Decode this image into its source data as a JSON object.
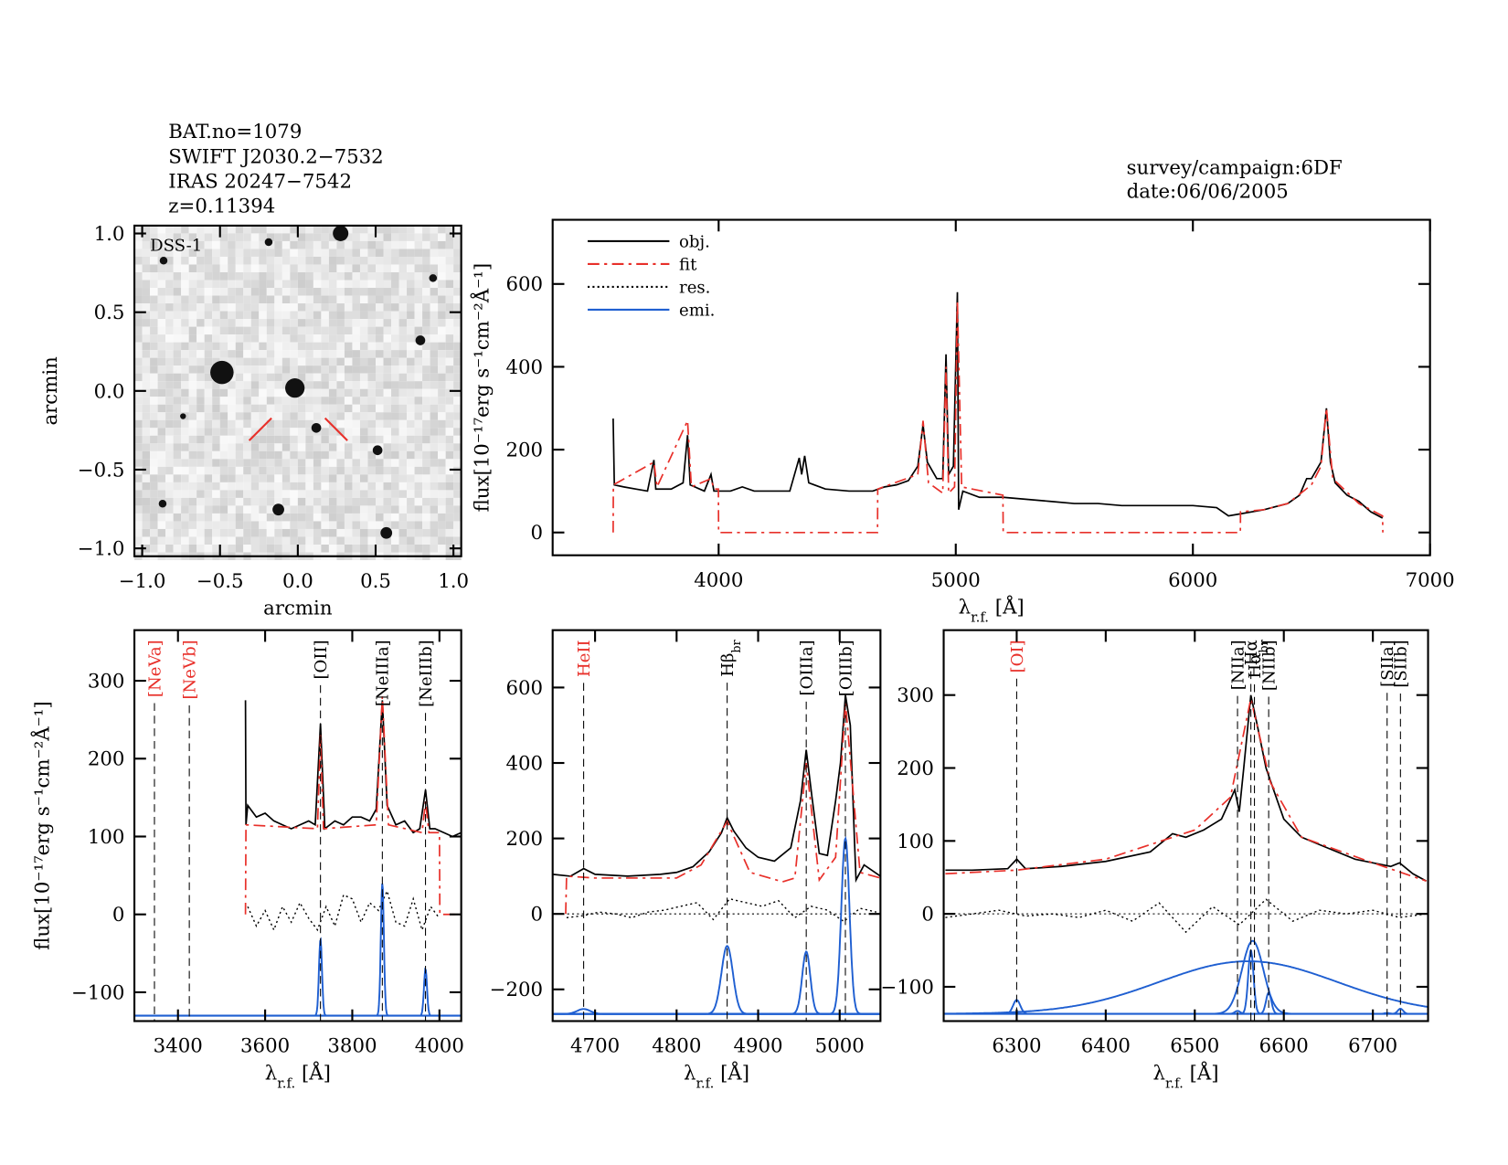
{
  "chart_data": [
    {
      "type": "image",
      "label": "DSS-1",
      "annotations": [
        "BAT.no=1079",
        "SWIFT J2030.2−7532",
        "IRAS 20247−7542",
        "z=0.11394"
      ],
      "xlim": [
        -1.05,
        1.05
      ],
      "ylim": [
        -1.05,
        1.05
      ],
      "xticks": [
        {
          "value": -1,
          "label": "−1.0"
        },
        {
          "value": -0.5,
          "label": "−0.5"
        },
        {
          "value": 0,
          "label": "0.0"
        },
        0.5,
        {
          "value": 1,
          "label": "1.0"
        }
      ],
      "yticks": [
        {
          "value": -1,
          "label": "−1.0"
        },
        {
          "value": -0.5,
          "label": "−0.5"
        },
        {
          "value": 0,
          "label": "0.0"
        },
        0.5,
        {
          "value": 1,
          "label": "1.0"
        }
      ],
      "xlabel": "arcmin",
      "ylabel": "arcmin"
    },
    {
      "type": "line",
      "annotations": [
        "survey/campaign:6DF",
        "date:06/06/2005"
      ],
      "xlim": [
        3300,
        7000
      ],
      "ylim": [
        -55,
        755
      ],
      "xticks": [
        4000,
        5000,
        6000,
        7000
      ],
      "yticks": [
        0,
        200,
        400,
        600
      ],
      "xlabel": {
        "symbol": "λ",
        "sub": "r.f.",
        "unit": " [Å]"
      },
      "ylabel": "flux[10⁻¹⁷erg s⁻¹cm⁻²Å⁻¹]",
      "legend": [
        {
          "name": "obj.",
          "color": "#000000",
          "dash": "solid"
        },
        {
          "name": "fit",
          "color": "#e8302a",
          "dash": "dashdot"
        },
        {
          "name": "res.",
          "color": "#000000",
          "dash": "dotted"
        },
        {
          "name": "emi.",
          "color": "#1f5fd1",
          "dash": "solid"
        }
      ],
      "series": [
        {
          "legend": 0,
          "x": [
            3555,
            3560,
            3600,
            3650,
            3700,
            3727,
            3735,
            3800,
            3850,
            3869,
            3880,
            3940,
            3968,
            3980,
            4050,
            4100,
            4150,
            4200,
            4300,
            4340,
            4350,
            4363,
            4380,
            4450,
            4550,
            4650,
            4700,
            4750,
            4800,
            4840,
            4862,
            4880,
            4920,
            4945,
            4959,
            4970,
            4990,
            5007,
            5012,
            5030,
            5100,
            5200,
            5300,
            5400,
            5500,
            5600,
            5700,
            5800,
            5900,
            6000,
            6100,
            6150,
            6200,
            6300,
            6400,
            6450,
            6480,
            6500,
            6540,
            6563,
            6580,
            6600,
            6650,
            6700,
            6750,
            6800
          ],
          "values": [
            275,
            115,
            110,
            105,
            100,
            175,
            105,
            105,
            120,
            235,
            115,
            100,
            140,
            100,
            100,
            110,
            100,
            100,
            100,
            180,
            140,
            185,
            120,
            105,
            100,
            100,
            110,
            115,
            125,
            160,
            260,
            170,
            130,
            130,
            430,
            140,
            160,
            580,
            55,
            100,
            85,
            85,
            80,
            75,
            70,
            70,
            65,
            65,
            65,
            65,
            60,
            40,
            45,
            55,
            70,
            90,
            130,
            130,
            170,
            300,
            170,
            120,
            90,
            75,
            50,
            35
          ]
        },
        {
          "legend": 1,
          "x": [
            3555,
            3556,
            3727,
            3740,
            3869,
            3885,
            3968,
            3980,
            3999,
            4000,
            4670,
            4671,
            4840,
            4862,
            4885,
            4945,
            4959,
            4970,
            4995,
            5007,
            5025,
            5199,
            5200,
            6200,
            6201,
            6300,
            6400,
            6500,
            6540,
            6563,
            6590,
            6700,
            6800,
            6801
          ],
          "values": [
            0,
            115,
            170,
            110,
            270,
            110,
            130,
            105,
            105,
            0,
            0,
            105,
            140,
            270,
            120,
            95,
            400,
            95,
            110,
            560,
            110,
            90,
            0,
            0,
            50,
            55,
            70,
            115,
            160,
            300,
            130,
            70,
            40,
            0
          ]
        }
      ]
    },
    {
      "type": "line",
      "xlim": [
        3300,
        4050
      ],
      "ylim": [
        -137,
        365
      ],
      "xticks": [
        3400,
        3600,
        3800,
        4000
      ],
      "yticks": [
        {
          "value": -100,
          "label": "−100"
        },
        0,
        100,
        200,
        300
      ],
      "xlabel": {
        "symbol": "λ",
        "sub": "r.f.",
        "unit": " [Å]"
      },
      "ylabel": "flux[10⁻¹⁷erg s⁻¹cm⁻²Å⁻¹]",
      "zero_line": false,
      "series": [
        {
          "legend": 0,
          "x": [
            3555,
            3556,
            3560,
            3580,
            3600,
            3620,
            3640,
            3660,
            3680,
            3700,
            3715,
            3727,
            3737,
            3760,
            3780,
            3800,
            3820,
            3840,
            3855,
            3869,
            3880,
            3900,
            3920,
            3940,
            3955,
            3968,
            3978,
            3990,
            4010,
            4030,
            4050
          ],
          "values": [
            275,
            115,
            140,
            125,
            130,
            120,
            115,
            110,
            115,
            120,
            115,
            245,
            110,
            120,
            115,
            125,
            125,
            120,
            135,
            275,
            140,
            115,
            120,
            105,
            110,
            160,
            110,
            110,
            105,
            100,
            105
          ]
        },
        {
          "legend": 1,
          "x": [
            3555,
            3556,
            3720,
            3727,
            3734,
            3855,
            3869,
            3883,
            3960,
            3968,
            3976,
            4000,
            4001,
            4050
          ],
          "values": [
            0,
            115,
            110,
            230,
            110,
            115,
            280,
            115,
            105,
            145,
            105,
            105,
            0,
            0
          ]
        },
        {
          "legend": 2,
          "x": [
            3560,
            3580,
            3600,
            3620,
            3640,
            3660,
            3680,
            3700,
            3720,
            3740,
            3760,
            3780,
            3800,
            3820,
            3840,
            3860,
            3880,
            3900,
            3920,
            3940,
            3960,
            3980,
            4000
          ],
          "values": [
            10,
            -15,
            5,
            -20,
            10,
            -10,
            15,
            -5,
            -20,
            10,
            -15,
            25,
            20,
            -10,
            15,
            5,
            30,
            -10,
            -15,
            20,
            -20,
            10,
            -5
          ]
        }
      ],
      "emission": {
        "legend": 3,
        "baseline": -130,
        "components": [
          {
            "center": 3727,
            "peak": -32,
            "width": 3.5
          },
          {
            "center": 3869,
            "peak": 40,
            "width": 3.5
          },
          {
            "center": 3968,
            "peak": -70,
            "width": 3.5
          }
        ]
      },
      "markers": [
        {
          "x": 3346,
          "label": "[NeVa]",
          "color": "#e8302a"
        },
        {
          "x": 3426,
          "label": "[NeVb]",
          "color": "#e8302a"
        },
        {
          "x": 3727,
          "label": "[OII]",
          "color": "#000000"
        },
        {
          "x": 3869,
          "label": "[NeIIIa]",
          "color": "#000000"
        },
        {
          "x": 3968,
          "label": "[NeIIIb]",
          "color": "#000000"
        }
      ]
    },
    {
      "type": "line",
      "xlim": [
        4648,
        5050
      ],
      "ylim": [
        -284,
        752
      ],
      "xticks": [
        4700,
        4800,
        4900,
        5000
      ],
      "yticks": [
        {
          "value": -200,
          "label": "−200"
        },
        0,
        200,
        400,
        600
      ],
      "xlabel": {
        "symbol": "λ",
        "sub": "r.f.",
        "unit": " [Å]"
      },
      "zero_line": true,
      "series": [
        {
          "legend": 0,
          "x": [
            4648,
            4670,
            4686,
            4700,
            4740,
            4780,
            4800,
            4820,
            4840,
            4855,
            4862,
            4870,
            4885,
            4900,
            4920,
            4940,
            4952,
            4959,
            4966,
            4975,
            4985,
            4995,
            5001,
            5007,
            5013,
            5018,
            5020,
            5030,
            5050
          ],
          "values": [
            105,
            100,
            120,
            105,
            100,
            105,
            110,
            125,
            165,
            215,
            255,
            220,
            175,
            150,
            140,
            175,
            300,
            435,
            310,
            160,
            155,
            300,
            400,
            580,
            500,
            200,
            90,
            130,
            100
          ]
        },
        {
          "legend": 1,
          "x": [
            4664,
            4665,
            4700,
            4800,
            4830,
            4862,
            4890,
            4930,
            4945,
            4959,
            4975,
            4995,
            5007,
            5025,
            5050
          ],
          "values": [
            0,
            100,
            95,
            95,
            130,
            245,
            110,
            85,
            95,
            400,
            90,
            150,
            560,
            110,
            95
          ]
        },
        {
          "legend": 2,
          "x": [
            4665,
            4685,
            4705,
            4725,
            4745,
            4765,
            4785,
            4805,
            4825,
            4845,
            4865,
            4885,
            4905,
            4925,
            4945,
            4965,
            4985,
            5005,
            5025,
            5045
          ],
          "values": [
            -10,
            -5,
            5,
            0,
            -10,
            5,
            10,
            20,
            30,
            -15,
            40,
            30,
            20,
            35,
            -10,
            20,
            10,
            -20,
            15,
            5
          ]
        }
      ],
      "emission": {
        "legend": 3,
        "baseline": -265,
        "components": [
          {
            "center": 4686,
            "peak": -252,
            "width": 8
          },
          {
            "center": 4862,
            "peak": -85,
            "width": 7
          },
          {
            "center": 4959,
            "peak": -100,
            "width": 5
          },
          {
            "center": 5007,
            "peak": 200,
            "width": 5
          }
        ]
      },
      "markers": [
        {
          "x": 4686,
          "label": "HeII",
          "color": "#e8302a"
        },
        {
          "x": 4862,
          "label": "Hβ",
          "sub": "br",
          "color": "#000000"
        },
        {
          "x": 4959,
          "label": "[OIIIa]",
          "color": "#000000"
        },
        {
          "x": 5007,
          "label": "[OIIIb]",
          "color": "#000000"
        }
      ]
    },
    {
      "type": "line",
      "xlim": [
        6218,
        6762
      ],
      "ylim": [
        -147,
        389
      ],
      "xticks": [
        6300,
        6400,
        6500,
        6600,
        6700
      ],
      "yticks": [
        {
          "value": -100,
          "label": "−100"
        },
        0,
        100,
        200,
        300
      ],
      "xlabel": {
        "symbol": "λ",
        "sub": "r.f.",
        "unit": " [Å]"
      },
      "zero_line": true,
      "series": [
        {
          "legend": 0,
          "x": [
            6220,
            6250,
            6290,
            6300,
            6310,
            6350,
            6400,
            6450,
            6475,
            6490,
            6510,
            6530,
            6545,
            6550,
            6555,
            6563,
            6570,
            6580,
            6590,
            6600,
            6620,
            6650,
            6680,
            6700,
            6720,
            6730,
            6745,
            6760
          ],
          "values": [
            60,
            60,
            62,
            75,
            62,
            65,
            72,
            85,
            110,
            105,
            115,
            130,
            170,
            140,
            200,
            300,
            260,
            200,
            165,
            130,
            105,
            90,
            75,
            70,
            65,
            70,
            55,
            45
          ]
        },
        {
          "legend": 1,
          "x": [
            6220,
            6300,
            6400,
            6500,
            6540,
            6563,
            6585,
            6620,
            6700,
            6760
          ],
          "values": [
            55,
            60,
            75,
            115,
            160,
            295,
            180,
            105,
            70,
            45
          ]
        },
        {
          "legend": 2,
          "x": [
            6220,
            6250,
            6280,
            6310,
            6340,
            6370,
            6400,
            6430,
            6460,
            6490,
            6520,
            6550,
            6580,
            6610,
            6640,
            6670,
            6700,
            6730,
            6760
          ],
          "values": [
            -5,
            0,
            5,
            -3,
            0,
            -5,
            5,
            -10,
            15,
            -25,
            10,
            -15,
            20,
            -10,
            5,
            0,
            5,
            -5,
            0
          ]
        }
      ],
      "emission": {
        "legend": 3,
        "baseline": -137,
        "components": [
          {
            "center": 6300,
            "peak": -118,
            "width": 4
          },
          {
            "center": 6560,
            "peak": -65,
            "width": 100
          },
          {
            "center": 6565,
            "peak": -37,
            "width": 12
          },
          {
            "center": 6563,
            "peak": -50,
            "width": 3
          },
          {
            "center": 6548,
            "peak": -133,
            "width": 3
          },
          {
            "center": 6583,
            "peak": -108,
            "width": 3
          },
          {
            "center": 6716,
            "peak": -136,
            "width": 3
          },
          {
            "center": 6731,
            "peak": -130,
            "width": 3
          }
        ]
      },
      "markers": [
        {
          "x": 6300,
          "label": "[OI]",
          "color": "#e8302a"
        },
        {
          "x": 6548,
          "label": "[NIIa]",
          "color": "#000000"
        },
        {
          "x": 6563,
          "label": "Hα",
          "color": "#000000"
        },
        {
          "x": 6567,
          "label": "Hα",
          "sub": "br",
          "color": "#000000"
        },
        {
          "x": 6583,
          "label": "[NIIb]",
          "color": "#000000"
        },
        {
          "x": 6716,
          "label": "[SIIa]",
          "color": "#000000"
        },
        {
          "x": 6731,
          "label": "[SIIb]",
          "color": "#000000"
        }
      ]
    }
  ]
}
